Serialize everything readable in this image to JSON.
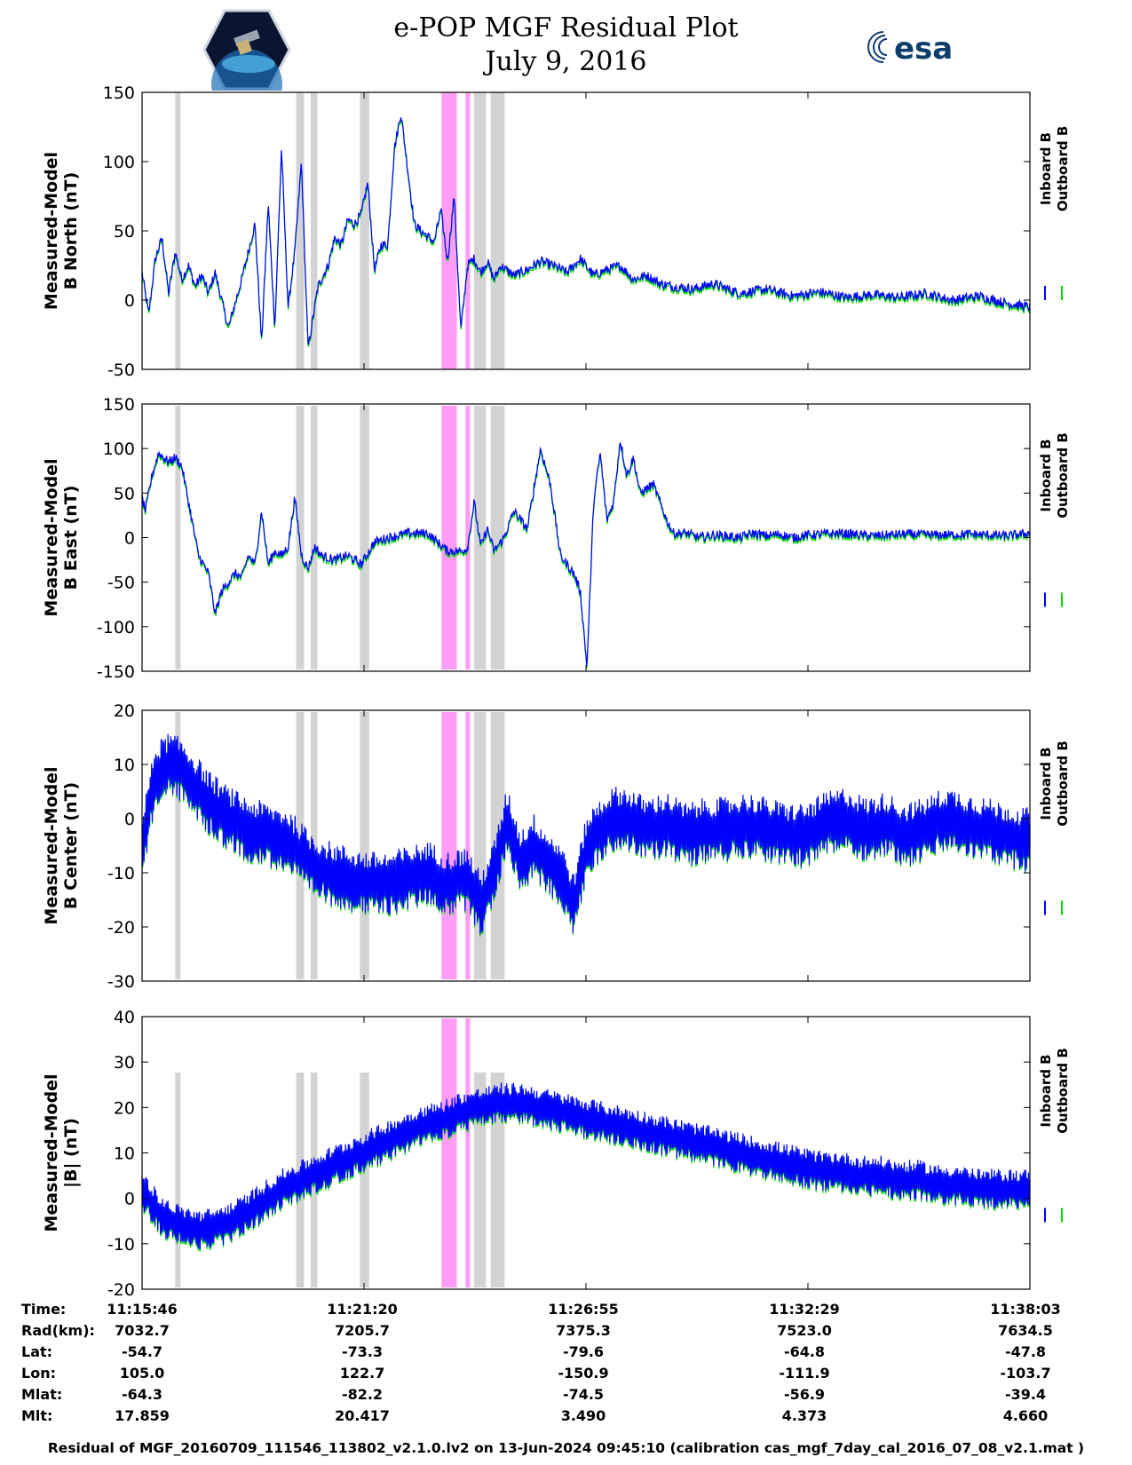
{
  "title": "e-POP MGF Residual Plot",
  "subtitle": "July 9, 2016",
  "logos": {
    "left": "cassiope-logo",
    "right_text": "esa"
  },
  "colors": {
    "inboard": "#0000ff",
    "outboard": "#00dd00",
    "gray_band": "#d3d3d3",
    "pink_band": "#ff9cf5"
  },
  "chart_data": [
    {
      "type": "line",
      "ylabel": [
        "Measured-Model",
        "B North (nT)"
      ],
      "ylim": [
        -50,
        150
      ],
      "yticks": [
        -50,
        0,
        50,
        100,
        150
      ],
      "legend": [
        "Inboard B",
        "Outboard B"
      ],
      "xlim_sec": [
        0,
        1337
      ],
      "series": [
        {
          "name": "Inboard B",
          "color": "#0000ff",
          "x": [
            0,
            10,
            20,
            30,
            40,
            50,
            60,
            70,
            80,
            90,
            100,
            110,
            130,
            150,
            170,
            180,
            190,
            200,
            210,
            220,
            230,
            240,
            250,
            265,
            280,
            290,
            300,
            310,
            320,
            330,
            340,
            350,
            360,
            370,
            380,
            390,
            400,
            410,
            420,
            440,
            450,
            460,
            470,
            480,
            490,
            500,
            510,
            520,
            530,
            540,
            560,
            580,
            600,
            620,
            640,
            660,
            680,
            700,
            720,
            740,
            760,
            780,
            800,
            830,
            860,
            900,
            940,
            980,
            1020,
            1060,
            1100,
            1140,
            1180,
            1220,
            1260,
            1300,
            1337
          ],
          "y": [
            20,
            -10,
            30,
            45,
            5,
            35,
            15,
            25,
            10,
            18,
            5,
            20,
            -20,
            15,
            55,
            -30,
            70,
            -20,
            110,
            -5,
            35,
            100,
            -35,
            10,
            25,
            45,
            40,
            58,
            55,
            62,
            85,
            22,
            40,
            40,
            110,
            135,
            95,
            55,
            50,
            42,
            65,
            28,
            75,
            -22,
            25,
            30,
            20,
            28,
            15,
            25,
            18,
            22,
            28,
            25,
            20,
            30,
            18,
            22,
            25,
            15,
            18,
            12,
            10,
            8,
            12,
            5,
            8,
            3,
            6,
            2,
            4,
            2,
            5,
            0,
            3,
            -2,
            -5
          ]
        }
      ],
      "bands": [
        {
          "color": "gray",
          "start_sec": 50,
          "end_sec": 58
        },
        {
          "color": "gray",
          "start_sec": 232,
          "end_sec": 244
        },
        {
          "color": "gray",
          "start_sec": 254,
          "end_sec": 264
        },
        {
          "color": "gray",
          "start_sec": 328,
          "end_sec": 342
        },
        {
          "color": "pink",
          "start_sec": 451,
          "end_sec": 474
        },
        {
          "color": "pink",
          "start_sec": 487,
          "end_sec": 494
        },
        {
          "color": "gray",
          "start_sec": 500,
          "end_sec": 518
        },
        {
          "color": "gray",
          "start_sec": 525,
          "end_sec": 546
        }
      ]
    },
    {
      "type": "line",
      "ylabel": [
        "Measured-Model",
        "B East (nT)"
      ],
      "ylim": [
        -150,
        150
      ],
      "yticks": [
        -150,
        -100,
        -50,
        0,
        50,
        100,
        150
      ],
      "legend": [
        "Inboard B",
        "Outboard B"
      ],
      "xlim_sec": [
        0,
        1337
      ],
      "series": [
        {
          "name": "Inboard B",
          "color": "#0000ff",
          "x": [
            0,
            5,
            15,
            25,
            40,
            50,
            60,
            70,
            85,
            100,
            110,
            120,
            130,
            140,
            150,
            160,
            170,
            180,
            190,
            200,
            210,
            220,
            230,
            240,
            250,
            260,
            270,
            290,
            310,
            330,
            350,
            370,
            400,
            430,
            460,
            480,
            490,
            500,
            510,
            520,
            530,
            545,
            560,
            580,
            600,
            615,
            630,
            650,
            660,
            670,
            680,
            690,
            700,
            710,
            720,
            730,
            740,
            750,
            770,
            790,
            800,
            820,
            840,
            860,
            880,
            900,
            920,
            940,
            960,
            980,
            1000,
            1050,
            1100,
            1150,
            1200,
            1250,
            1300,
            1337
          ],
          "y": [
            45,
            30,
            70,
            95,
            85,
            90,
            80,
            40,
            -20,
            -40,
            -85,
            -60,
            -50,
            -40,
            -45,
            -20,
            -30,
            30,
            -30,
            -15,
            -20,
            -10,
            45,
            -20,
            -35,
            -10,
            -20,
            -25,
            -20,
            -30,
            -5,
            0,
            5,
            5,
            -15,
            -15,
            -12,
            40,
            -10,
            10,
            -15,
            0,
            30,
            10,
            100,
            60,
            -20,
            -40,
            -60,
            -145,
            40,
            95,
            20,
            40,
            110,
            70,
            90,
            50,
            60,
            20,
            5,
            5,
            0,
            3,
            2,
            0,
            5,
            2,
            4,
            0,
            3,
            5,
            2,
            4,
            3,
            4,
            2,
            5
          ]
        }
      ],
      "bands": [
        {
          "color": "gray",
          "start_sec": 50,
          "end_sec": 58
        },
        {
          "color": "gray",
          "start_sec": 232,
          "end_sec": 244
        },
        {
          "color": "gray",
          "start_sec": 254,
          "end_sec": 264
        },
        {
          "color": "gray",
          "start_sec": 328,
          "end_sec": 342
        },
        {
          "color": "pink",
          "start_sec": 451,
          "end_sec": 474
        },
        {
          "color": "pink",
          "start_sec": 487,
          "end_sec": 494
        },
        {
          "color": "gray",
          "start_sec": 500,
          "end_sec": 518
        },
        {
          "color": "gray",
          "start_sec": 525,
          "end_sec": 546
        }
      ]
    },
    {
      "type": "line",
      "ylabel": [
        "Measured-Model",
        "B Center (nT)"
      ],
      "ylim": [
        -30,
        20
      ],
      "yticks": [
        -30,
        -20,
        -10,
        0,
        10,
        20
      ],
      "legend": [
        "Inboard B",
        "Outboard B"
      ],
      "xlim_sec": [
        0,
        1337
      ],
      "series": [
        {
          "name": "Inboard B",
          "color": "#0000ff",
          "x": [
            0,
            20,
            40,
            60,
            80,
            100,
            130,
            160,
            190,
            220,
            250,
            280,
            310,
            340,
            370,
            400,
            430,
            460,
            490,
            510,
            530,
            550,
            570,
            590,
            610,
            630,
            650,
            670,
            690,
            710,
            730,
            760,
            790,
            820,
            850,
            880,
            910,
            940,
            970,
            1000,
            1030,
            1060,
            1090,
            1120,
            1150,
            1180,
            1210,
            1240,
            1270,
            1300,
            1337
          ],
          "y": [
            -5,
            8,
            10,
            9,
            6,
            3,
            0,
            -2,
            -3,
            -4,
            -8,
            -10,
            -11,
            -12,
            -12,
            -11,
            -10,
            -12,
            -11,
            -16,
            -10,
            0,
            -8,
            -5,
            -8,
            -10,
            -16,
            -5,
            -2,
            0,
            0,
            -2,
            -1,
            -3,
            -2,
            -2,
            -1,
            -2,
            -3,
            -3,
            -1,
            0,
            -2,
            -1,
            -3,
            -2,
            0,
            -1,
            -2,
            -3,
            -4
          ]
        }
      ],
      "noise_amplitude": 6,
      "bands": [
        {
          "color": "gray",
          "start_sec": 50,
          "end_sec": 58
        },
        {
          "color": "gray",
          "start_sec": 232,
          "end_sec": 244
        },
        {
          "color": "gray",
          "start_sec": 254,
          "end_sec": 264
        },
        {
          "color": "gray",
          "start_sec": 328,
          "end_sec": 342
        },
        {
          "color": "pink",
          "start_sec": 451,
          "end_sec": 474
        },
        {
          "color": "pink",
          "start_sec": 487,
          "end_sec": 494
        },
        {
          "color": "gray",
          "start_sec": 500,
          "end_sec": 518
        },
        {
          "color": "gray",
          "start_sec": 525,
          "end_sec": 546
        }
      ]
    },
    {
      "type": "line",
      "ylabel": [
        "Measured-Model",
        "|B| (nT)"
      ],
      "ylim": [
        -20,
        40
      ],
      "yticks": [
        -20,
        -10,
        0,
        10,
        20,
        30,
        40
      ],
      "legend": [
        "Inboard B",
        "Outboard B"
      ],
      "xlim_sec": [
        0,
        1337
      ],
      "series": [
        {
          "name": "Inboard B",
          "color": "#0000ff",
          "x": [
            0,
            30,
            60,
            90,
            120,
            150,
            180,
            210,
            240,
            270,
            300,
            330,
            360,
            390,
            420,
            450,
            480,
            510,
            540,
            570,
            600,
            630,
            660,
            690,
            720,
            750,
            780,
            810,
            840,
            870,
            900,
            930,
            960,
            990,
            1020,
            1050,
            1080,
            1110,
            1140,
            1170,
            1200,
            1230,
            1260,
            1290,
            1337
          ],
          "y": [
            2,
            -4,
            -6,
            -7,
            -6,
            -4,
            -1,
            2,
            4,
            6,
            8,
            10,
            12,
            14,
            16,
            17,
            19,
            20,
            21,
            21,
            20,
            19,
            18,
            17,
            16,
            15,
            14,
            13,
            12,
            11,
            10,
            9,
            8,
            7,
            6,
            6,
            5,
            5,
            4,
            4,
            3,
            3,
            2,
            2,
            2
          ]
        }
      ],
      "noise_amplitude": 4.5,
      "bands": [
        {
          "color": "gray",
          "start_sec": 50,
          "end_sec": 58
        },
        {
          "color": "gray",
          "start_sec": 232,
          "end_sec": 244
        },
        {
          "color": "gray",
          "start_sec": 254,
          "end_sec": 264
        },
        {
          "color": "gray",
          "start_sec": 328,
          "end_sec": 342
        },
        {
          "color": "pink",
          "start_sec": 451,
          "end_sec": 474
        },
        {
          "color": "pink",
          "start_sec": 487,
          "end_sec": 494
        },
        {
          "color": "gray",
          "start_sec": 500,
          "end_sec": 518
        },
        {
          "color": "gray",
          "start_sec": 525,
          "end_sec": 546
        }
      ]
    }
  ],
  "info_table": {
    "row_labels": [
      "Time:",
      "Rad(km):",
      "Lat:",
      "Lon:",
      "Mlat:",
      "Mlt:"
    ],
    "columns": [
      {
        "time": "11:15:46",
        "rad": "7032.7",
        "lat": "-54.7",
        "lon": "105.0",
        "mlat": "-64.3",
        "mlt": "17.859"
      },
      {
        "time": "11:21:20",
        "rad": "7205.7",
        "lat": "-73.3",
        "lon": "122.7",
        "mlat": "-82.2",
        "mlt": "20.417"
      },
      {
        "time": "11:26:55",
        "rad": "7375.3",
        "lat": "-79.6",
        "lon": "-150.9",
        "mlat": "-74.5",
        "mlt": "3.490"
      },
      {
        "time": "11:32:29",
        "rad": "7523.0",
        "lat": "-64.8",
        "lon": "-111.9",
        "mlat": "-56.9",
        "mlt": "4.373"
      },
      {
        "time": "11:38:03",
        "rad": "7634.5",
        "lat": "-47.8",
        "lon": "-103.7",
        "mlat": "-39.4",
        "mlt": "4.660"
      }
    ]
  },
  "footer": "Residual of MGF_20160709_111546_113802_v2.1.0.lv2 on 13-Jun-2024 09:45:10 (calibration cas_mgf_7day_cal_2016_07_08_v2.1.mat )"
}
